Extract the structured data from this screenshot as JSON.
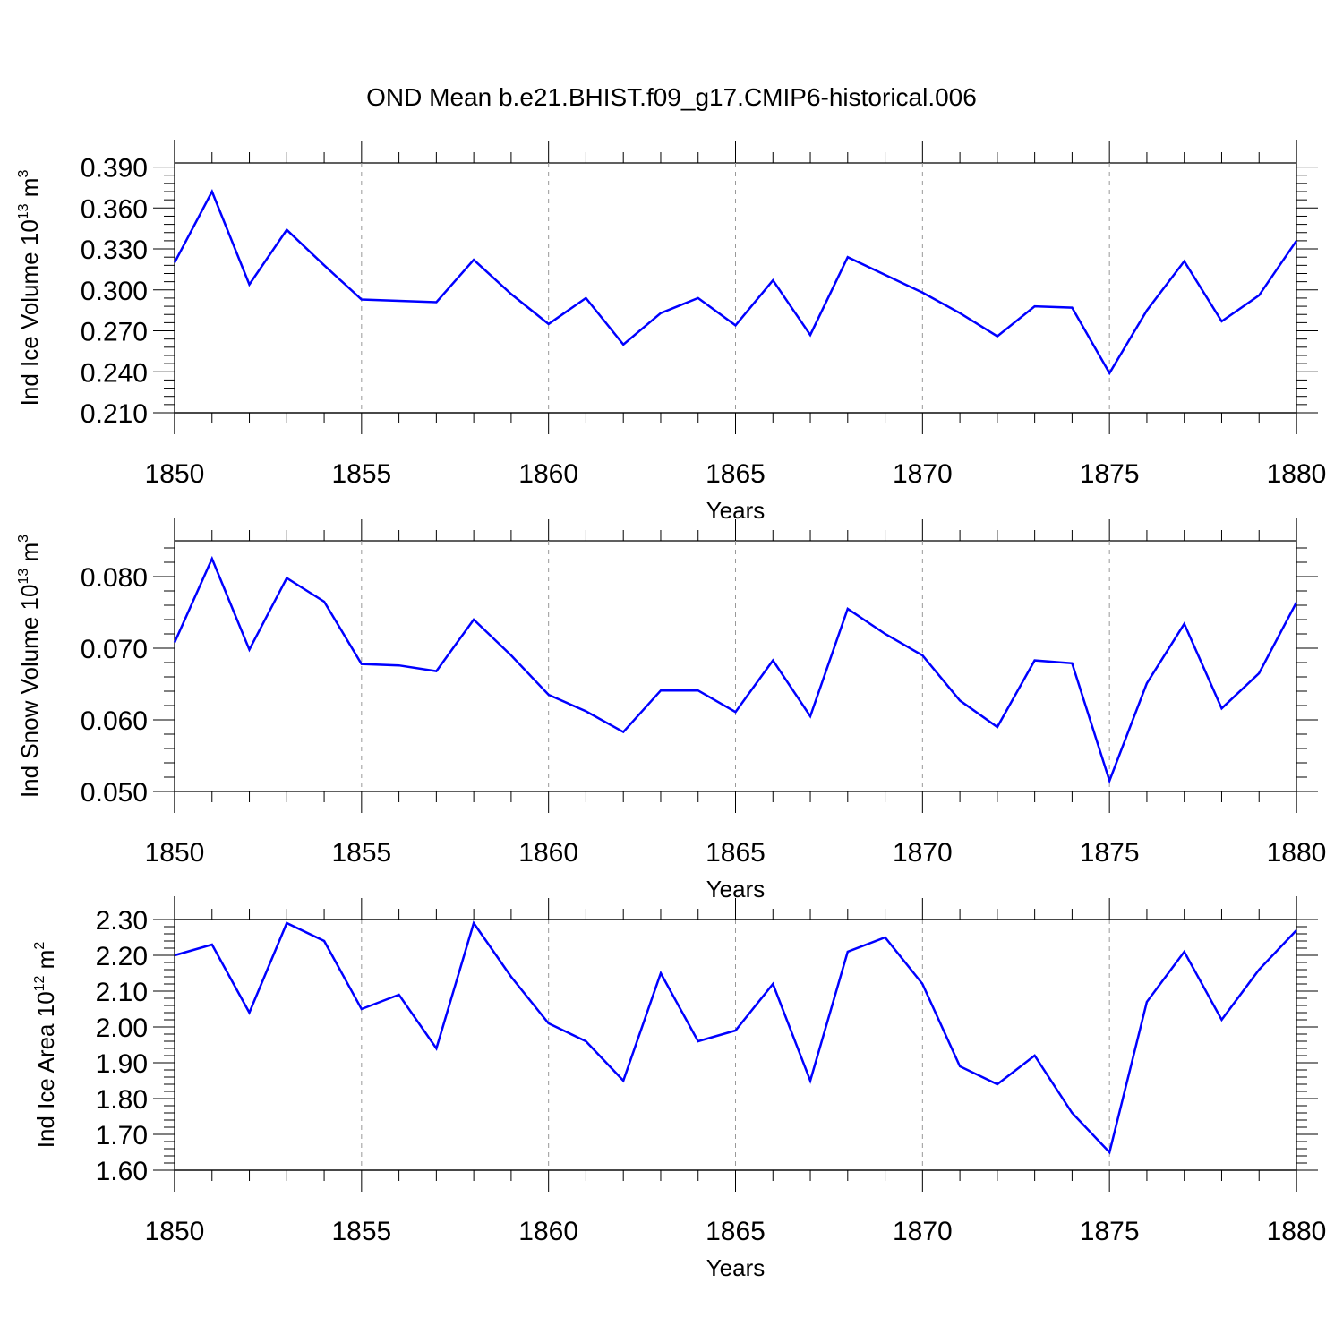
{
  "colors": {
    "line": "#0000ff",
    "axes": "#000000",
    "grid": "#999999",
    "background": "#ffffff"
  },
  "chart_data": {
    "title": "OND Mean b.e21.BHIST.f09_g17.CMIP6-historical.006",
    "panels": [
      {
        "type": "line",
        "ylabel_prefix": "Ind Ice Volume 10",
        "ylabel_exponent": "13",
        "ylabel_unit": "m",
        "ylabel_unit_exponent": "3",
        "xlabel": "Years",
        "xlim": [
          1850,
          1880
        ],
        "ylim": [
          0.21,
          0.393
        ],
        "yticks": [
          0.21,
          0.24,
          0.27,
          0.3,
          0.33,
          0.36,
          0.39
        ],
        "ytick_labels": [
          "0.210",
          "0.240",
          "0.270",
          "0.300",
          "0.330",
          "0.360",
          "0.390"
        ],
        "xticks": [
          1850,
          1855,
          1860,
          1865,
          1870,
          1875,
          1880
        ],
        "xtick_labels": [
          "1850",
          "1855",
          "1860",
          "1865",
          "1870",
          "1875",
          "1880"
        ],
        "series": [
          {
            "name": "Ind Ice Volume",
            "x": [
              1850,
              1851,
              1852,
              1853,
              1854,
              1855,
              1856,
              1857,
              1858,
              1859,
              1860,
              1861,
              1862,
              1863,
              1864,
              1865,
              1866,
              1867,
              1868,
              1869,
              1870,
              1871,
              1872,
              1873,
              1874,
              1875,
              1876,
              1877,
              1878,
              1879,
              1880
            ],
            "values": [
              0.32,
              0.372,
              0.304,
              0.344,
              0.318,
              0.293,
              0.292,
              0.291,
              0.322,
              0.297,
              0.275,
              0.294,
              0.26,
              0.283,
              0.294,
              0.274,
              0.307,
              0.267,
              0.324,
              0.311,
              0.298,
              0.283,
              0.266,
              0.288,
              0.287,
              0.239,
              0.285,
              0.321,
              0.277,
              0.296,
              0.336
            ]
          }
        ]
      },
      {
        "type": "line",
        "ylabel_prefix": "Ind Snow Volume 10",
        "ylabel_exponent": "13",
        "ylabel_unit": "m",
        "ylabel_unit_exponent": "3",
        "xlabel": "Years",
        "xlim": [
          1850,
          1880
        ],
        "ylim": [
          0.05,
          0.085
        ],
        "yticks": [
          0.05,
          0.06,
          0.07,
          0.08
        ],
        "ytick_labels": [
          "0.050",
          "0.060",
          "0.070",
          "0.080"
        ],
        "xticks": [
          1850,
          1855,
          1860,
          1865,
          1870,
          1875,
          1880
        ],
        "xtick_labels": [
          "1850",
          "1855",
          "1860",
          "1865",
          "1870",
          "1875",
          "1880"
        ],
        "series": [
          {
            "name": "Ind Snow Volume",
            "x": [
              1850,
              1851,
              1852,
              1853,
              1854,
              1855,
              1856,
              1857,
              1858,
              1859,
              1860,
              1861,
              1862,
              1863,
              1864,
              1865,
              1866,
              1867,
              1868,
              1869,
              1870,
              1871,
              1872,
              1873,
              1874,
              1875,
              1876,
              1877,
              1878,
              1879,
              1880
            ],
            "values": [
              0.0708,
              0.0825,
              0.0698,
              0.0798,
              0.0765,
              0.0678,
              0.0676,
              0.0668,
              0.074,
              0.069,
              0.0635,
              0.0612,
              0.0583,
              0.0641,
              0.0641,
              0.0611,
              0.0683,
              0.0605,
              0.0755,
              0.072,
              0.069,
              0.0627,
              0.059,
              0.0683,
              0.0679,
              0.0515,
              0.0651,
              0.0734,
              0.0616,
              0.0665,
              0.0764
            ]
          }
        ]
      },
      {
        "type": "line",
        "ylabel_prefix": "Ind Ice Area 10",
        "ylabel_exponent": "12",
        "ylabel_unit": "m",
        "ylabel_unit_exponent": "2",
        "xlabel": "Years",
        "xlim": [
          1850,
          1880
        ],
        "ylim": [
          1.6,
          2.3
        ],
        "yticks": [
          1.6,
          1.7,
          1.8,
          1.9,
          2.0,
          2.1,
          2.2,
          2.3
        ],
        "ytick_labels": [
          "1.60",
          "1.70",
          "1.80",
          "1.90",
          "2.00",
          "2.10",
          "2.20",
          "2.30"
        ],
        "xticks": [
          1850,
          1855,
          1860,
          1865,
          1870,
          1875,
          1880
        ],
        "xtick_labels": [
          "1850",
          "1855",
          "1860",
          "1865",
          "1870",
          "1875",
          "1880"
        ],
        "series": [
          {
            "name": "Ind Ice Area",
            "x": [
              1850,
              1851,
              1852,
              1853,
              1854,
              1855,
              1856,
              1857,
              1858,
              1859,
              1860,
              1861,
              1862,
              1863,
              1864,
              1865,
              1866,
              1867,
              1868,
              1869,
              1870,
              1871,
              1872,
              1873,
              1874,
              1875,
              1876,
              1877,
              1878,
              1879,
              1880
            ],
            "values": [
              2.2,
              2.23,
              2.04,
              2.29,
              2.24,
              2.05,
              2.09,
              1.94,
              2.29,
              2.14,
              2.01,
              1.96,
              1.85,
              2.15,
              1.96,
              1.99,
              2.12,
              1.85,
              2.21,
              2.25,
              2.12,
              1.89,
              1.84,
              1.92,
              1.76,
              1.65,
              2.07,
              2.21,
              2.02,
              2.16,
              2.27
            ]
          }
        ]
      }
    ]
  }
}
